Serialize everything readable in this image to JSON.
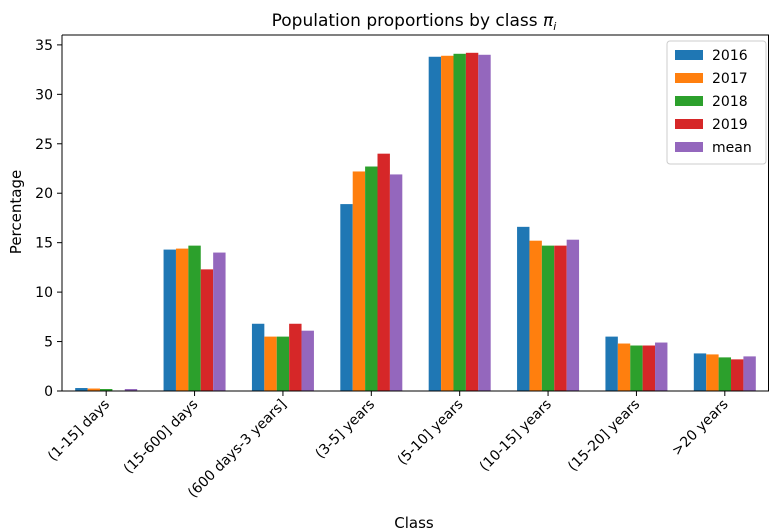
{
  "chart_data": {
    "type": "bar",
    "title": "Population proportions by class",
    "title_symbol": "π",
    "title_subscript": "i",
    "xlabel": "Class",
    "ylabel": "Percentage",
    "ylim": [
      0,
      36
    ],
    "yticks": [
      0,
      5,
      10,
      15,
      20,
      25,
      30,
      35
    ],
    "grid": false,
    "legend_position": "top-right",
    "categories": [
      "(1-15] days",
      "(15-600] days",
      "(600 days-3 years]",
      "(3-5] years",
      "(5-10] years",
      "(10-15] years",
      "(15-20] years",
      ">20 years"
    ],
    "series": [
      {
        "name": "2016",
        "color": "#1f77b4",
        "values": [
          0.3,
          14.3,
          6.8,
          18.9,
          33.8,
          16.6,
          5.5,
          3.8
        ]
      },
      {
        "name": "2017",
        "color": "#ff7f0e",
        "values": [
          0.25,
          14.4,
          5.5,
          22.2,
          33.9,
          15.2,
          4.8,
          3.7
        ]
      },
      {
        "name": "2018",
        "color": "#2ca02c",
        "values": [
          0.2,
          14.7,
          5.5,
          22.7,
          34.1,
          14.7,
          4.6,
          3.4
        ]
      },
      {
        "name": "2019",
        "color": "#d62728",
        "values": [
          0.05,
          12.3,
          6.8,
          24.0,
          34.2,
          14.7,
          4.6,
          3.2
        ]
      },
      {
        "name": "mean",
        "color": "#9467bd",
        "values": [
          0.2,
          14.0,
          6.1,
          21.9,
          34.0,
          15.3,
          4.9,
          3.5
        ]
      }
    ]
  }
}
